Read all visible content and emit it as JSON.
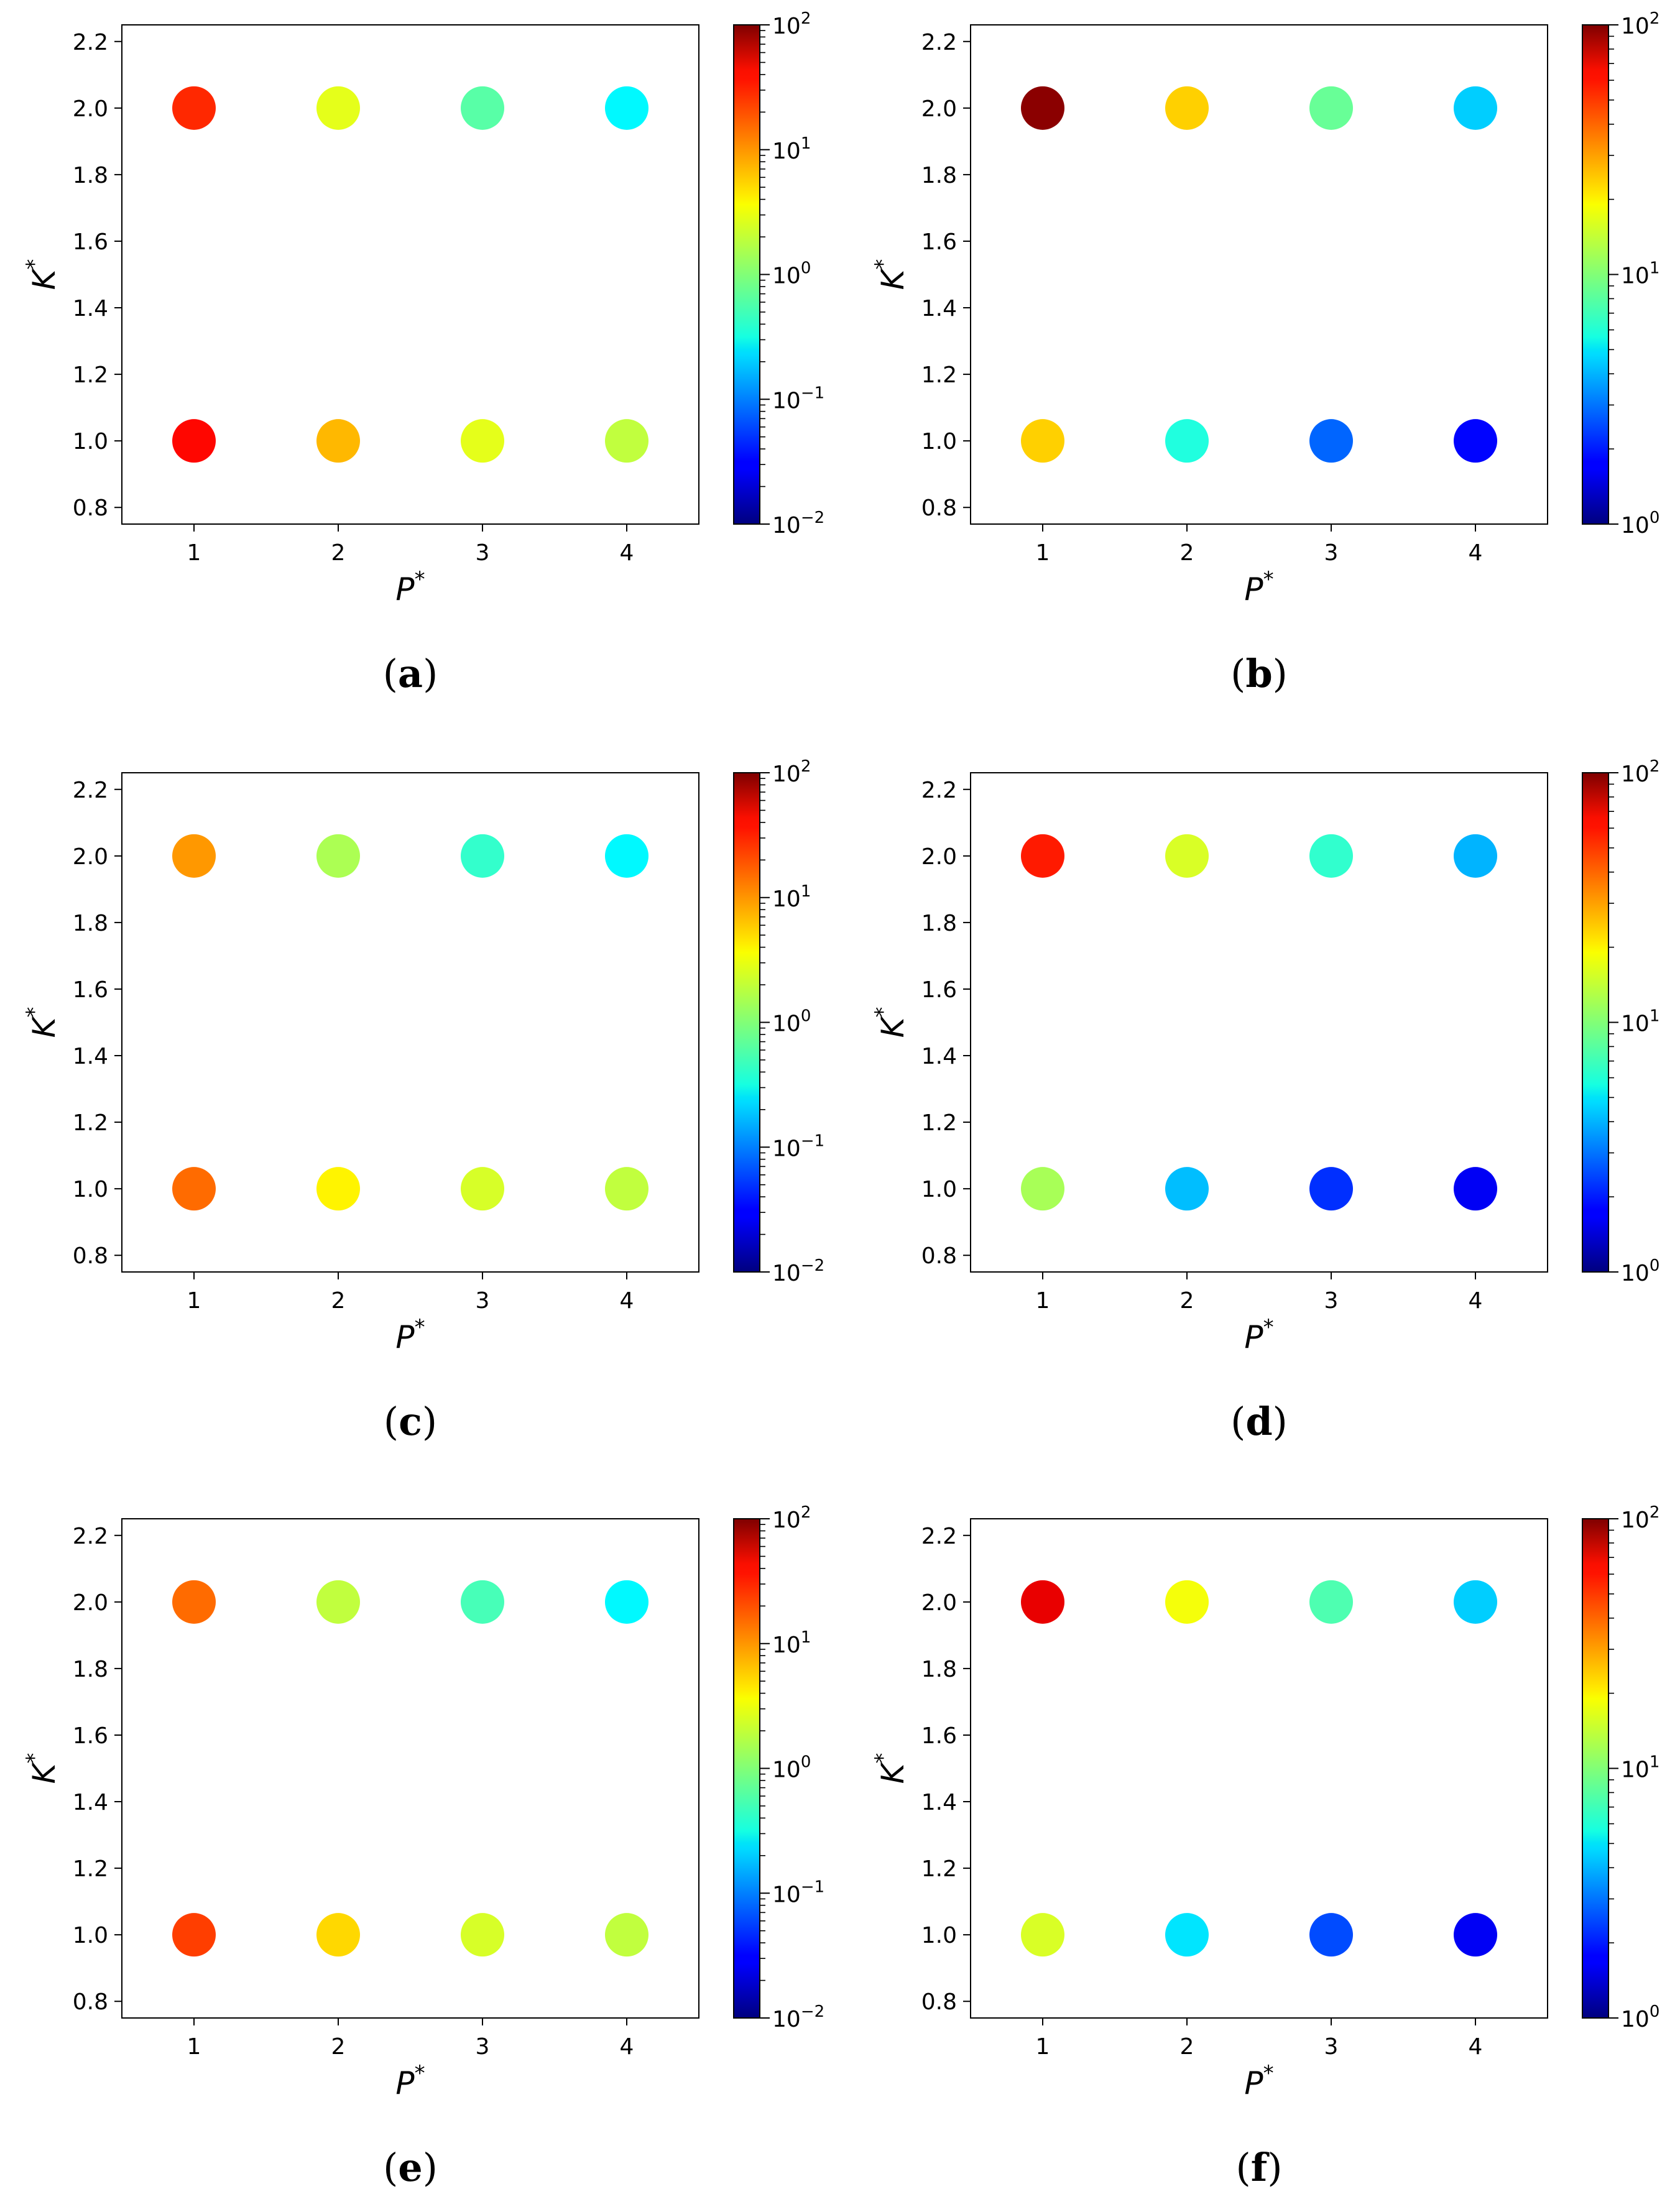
{
  "chart_data": [
    {
      "panel": "(a)",
      "type": "scatter",
      "xlabel": "P*",
      "ylabel": "K*",
      "x_ticks": [
        "1",
        "2",
        "3",
        "4"
      ],
      "y_ticks": [
        "0.8",
        "1.0",
        "1.2",
        "1.4",
        "1.6",
        "1.8",
        "2.0",
        "2.2"
      ],
      "xlim": [
        0.5,
        4.5
      ],
      "ylim": [
        0.75,
        2.25
      ],
      "colorbar": {
        "scale": "log",
        "min": 0.01,
        "max": 100,
        "ticks": [
          {
            "b": "10",
            "e": "−2"
          },
          {
            "b": "10",
            "e": "−1"
          },
          {
            "b": "10",
            "e": "0"
          },
          {
            "b": "10",
            "e": "1"
          },
          {
            "b": "10",
            "e": "2"
          }
        ]
      },
      "points": [
        {
          "x": 1,
          "y": 2.0,
          "value": 22
        },
        {
          "x": 2,
          "y": 2.0,
          "value": 2.5
        },
        {
          "x": 3,
          "y": 2.0,
          "value": 0.7
        },
        {
          "x": 4,
          "y": 2.0,
          "value": 0.3
        },
        {
          "x": 1,
          "y": 1.0,
          "value": 30
        },
        {
          "x": 2,
          "y": 1.0,
          "value": 6
        },
        {
          "x": 3,
          "y": 1.0,
          "value": 2.5
        },
        {
          "x": 4,
          "y": 1.0,
          "value": 1.8
        }
      ]
    },
    {
      "panel": "(b)",
      "type": "scatter",
      "xlabel": "P*",
      "ylabel": "K*",
      "x_ticks": [
        "1",
        "2",
        "3",
        "4"
      ],
      "y_ticks": [
        "0.8",
        "1.0",
        "1.2",
        "1.4",
        "1.6",
        "1.8",
        "2.0",
        "2.2"
      ],
      "xlim": [
        0.5,
        4.5
      ],
      "ylim": [
        0.75,
        2.25
      ],
      "colorbar": {
        "scale": "log",
        "min": 1,
        "max": 100,
        "ticks": [
          {
            "b": "10",
            "e": "0"
          },
          {
            "b": "10",
            "e": "1"
          },
          {
            "b": "10",
            "e": "2"
          }
        ]
      },
      "points": [
        {
          "x": 1,
          "y": 2.0,
          "value": 95
        },
        {
          "x": 2,
          "y": 2.0,
          "value": 22
        },
        {
          "x": 3,
          "y": 2.0,
          "value": 9
        },
        {
          "x": 4,
          "y": 2.0,
          "value": 4.5
        },
        {
          "x": 1,
          "y": 1.0,
          "value": 22
        },
        {
          "x": 2,
          "y": 1.0,
          "value": 6.5
        },
        {
          "x": 3,
          "y": 1.0,
          "value": 2.8
        },
        {
          "x": 4,
          "y": 1.0,
          "value": 1.8
        }
      ]
    },
    {
      "panel": "(c)",
      "type": "scatter",
      "xlabel": "P*",
      "ylabel": "K*",
      "x_ticks": [
        "1",
        "2",
        "3",
        "4"
      ],
      "y_ticks": [
        "0.8",
        "1.0",
        "1.2",
        "1.4",
        "1.6",
        "1.8",
        "2.0",
        "2.2"
      ],
      "xlim": [
        0.5,
        4.5
      ],
      "ylim": [
        0.75,
        2.25
      ],
      "colorbar": {
        "scale": "log",
        "min": 0.01,
        "max": 100,
        "ticks": [
          {
            "b": "10",
            "e": "−2"
          },
          {
            "b": "10",
            "e": "−1"
          },
          {
            "b": "10",
            "e": "0"
          },
          {
            "b": "10",
            "e": "1"
          },
          {
            "b": "10",
            "e": "2"
          }
        ]
      },
      "points": [
        {
          "x": 1,
          "y": 2.0,
          "value": 8
        },
        {
          "x": 2,
          "y": 2.0,
          "value": 1.5
        },
        {
          "x": 3,
          "y": 2.0,
          "value": 0.5
        },
        {
          "x": 4,
          "y": 2.0,
          "value": 0.3
        },
        {
          "x": 1,
          "y": 1.0,
          "value": 12
        },
        {
          "x": 2,
          "y": 1.0,
          "value": 3.5
        },
        {
          "x": 3,
          "y": 1.0,
          "value": 2.2
        },
        {
          "x": 4,
          "y": 1.0,
          "value": 1.8
        }
      ]
    },
    {
      "panel": "(d)",
      "type": "scatter",
      "xlabel": "P*",
      "ylabel": "K*",
      "x_ticks": [
        "1",
        "2",
        "3",
        "4"
      ],
      "y_ticks": [
        "0.8",
        "1.0",
        "1.2",
        "1.4",
        "1.6",
        "1.8",
        "2.0",
        "2.2"
      ],
      "xlim": [
        0.5,
        4.5
      ],
      "ylim": [
        0.75,
        2.25
      ],
      "colorbar": {
        "scale": "log",
        "min": 1,
        "max": 100,
        "ticks": [
          {
            "b": "10",
            "e": "0"
          },
          {
            "b": "10",
            "e": "1"
          },
          {
            "b": "10",
            "e": "2"
          }
        ]
      },
      "points": [
        {
          "x": 1,
          "y": 2.0,
          "value": 50
        },
        {
          "x": 2,
          "y": 2.0,
          "value": 15
        },
        {
          "x": 3,
          "y": 2.0,
          "value": 7
        },
        {
          "x": 4,
          "y": 2.0,
          "value": 4
        },
        {
          "x": 1,
          "y": 1.0,
          "value": 12
        },
        {
          "x": 2,
          "y": 1.0,
          "value": 4.2
        },
        {
          "x": 3,
          "y": 1.0,
          "value": 2.2
        },
        {
          "x": 4,
          "y": 1.0,
          "value": 1.7
        }
      ]
    },
    {
      "panel": "(e)",
      "type": "scatter",
      "xlabel": "P*",
      "ylabel": "K*",
      "x_ticks": [
        "1",
        "2",
        "3",
        "4"
      ],
      "y_ticks": [
        "0.8",
        "1.0",
        "1.2",
        "1.4",
        "1.6",
        "1.8",
        "2.0",
        "2.2"
      ],
      "xlim": [
        0.5,
        4.5
      ],
      "ylim": [
        0.75,
        2.25
      ],
      "colorbar": {
        "scale": "log",
        "min": 0.01,
        "max": 100,
        "ticks": [
          {
            "b": "10",
            "e": "−2"
          },
          {
            "b": "10",
            "e": "−1"
          },
          {
            "b": "10",
            "e": "0"
          },
          {
            "b": "10",
            "e": "1"
          },
          {
            "b": "10",
            "e": "2"
          }
        ]
      },
      "points": [
        {
          "x": 1,
          "y": 2.0,
          "value": 12
        },
        {
          "x": 2,
          "y": 2.0,
          "value": 1.8
        },
        {
          "x": 3,
          "y": 2.0,
          "value": 0.6
        },
        {
          "x": 4,
          "y": 2.0,
          "value": 0.3
        },
        {
          "x": 1,
          "y": 1.0,
          "value": 18
        },
        {
          "x": 2,
          "y": 1.0,
          "value": 4.5
        },
        {
          "x": 3,
          "y": 1.0,
          "value": 2.2
        },
        {
          "x": 4,
          "y": 1.0,
          "value": 1.8
        }
      ]
    },
    {
      "panel": "(f)",
      "type": "scatter",
      "xlabel": "P*",
      "ylabel": "K*",
      "x_ticks": [
        "1",
        "2",
        "3",
        "4"
      ],
      "y_ticks": [
        "0.8",
        "1.0",
        "1.2",
        "1.4",
        "1.6",
        "1.8",
        "2.0",
        "2.2"
      ],
      "xlim": [
        0.5,
        4.5
      ],
      "ylim": [
        0.75,
        2.25
      ],
      "colorbar": {
        "scale": "log",
        "min": 1,
        "max": 100,
        "ticks": [
          {
            "b": "10",
            "e": "0"
          },
          {
            "b": "10",
            "e": "1"
          },
          {
            "b": "10",
            "e": "2"
          }
        ]
      },
      "points": [
        {
          "x": 1,
          "y": 2.0,
          "value": 62
        },
        {
          "x": 2,
          "y": 2.0,
          "value": 17
        },
        {
          "x": 3,
          "y": 2.0,
          "value": 8
        },
        {
          "x": 4,
          "y": 2.0,
          "value": 4.5
        },
        {
          "x": 1,
          "y": 1.0,
          "value": 15
        },
        {
          "x": 2,
          "y": 1.0,
          "value": 5
        },
        {
          "x": 3,
          "y": 1.0,
          "value": 2.5
        },
        {
          "x": 4,
          "y": 1.0,
          "value": 1.7
        }
      ]
    }
  ],
  "captions": [
    {
      "panel": "(a)",
      "letter": "a"
    },
    {
      "panel": "(b)",
      "letter": "b"
    },
    {
      "panel": "(c)",
      "letter": "c"
    },
    {
      "panel": "(d)",
      "letter": "d"
    },
    {
      "panel": "(e)",
      "letter": "e"
    },
    {
      "panel": "(f)",
      "letter": "f"
    }
  ]
}
